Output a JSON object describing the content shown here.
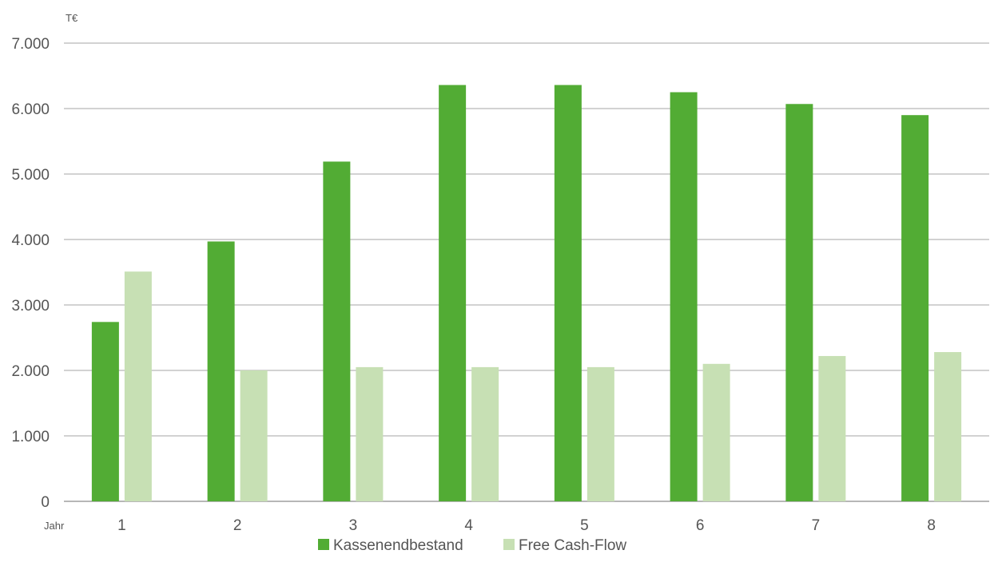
{
  "chart_data": {
    "type": "bar",
    "unit_label": "T€",
    "xlabel": "Jahr",
    "categories": [
      "1",
      "2",
      "3",
      "4",
      "5",
      "6",
      "7",
      "8"
    ],
    "yticks": [
      "0",
      "1.000",
      "2.000",
      "3.000",
      "4.000",
      "5.000",
      "6.000",
      "7.000"
    ],
    "ylim": [
      0,
      7000
    ],
    "grid": true,
    "legend_position": "bottom",
    "series": [
      {
        "name": "Kassenendbestand",
        "color": "#52ac34",
        "values": [
          2740,
          3970,
          5190,
          6360,
          6360,
          6250,
          6070,
          5900
        ]
      },
      {
        "name": "Free Cash-Flow",
        "color": "#c7e0b4",
        "values": [
          3510,
          2000,
          2050,
          2050,
          2050,
          2100,
          2220,
          2280
        ]
      }
    ]
  }
}
